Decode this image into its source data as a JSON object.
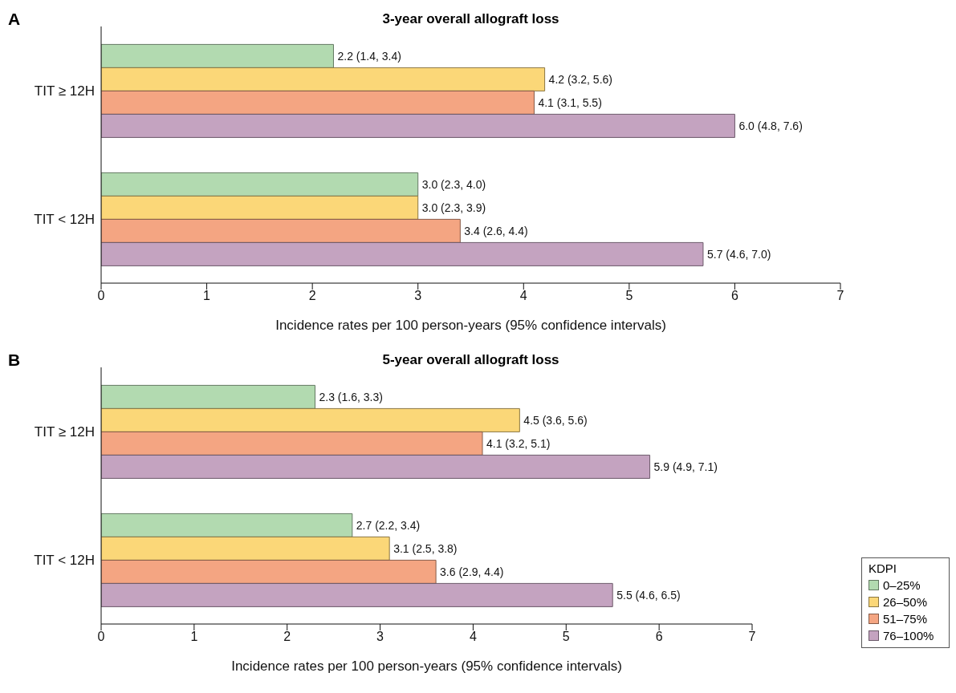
{
  "chart_data": [
    {
      "type": "bar",
      "orientation": "horizontal",
      "title": "3-year overall allograft loss",
      "xlabel": "Incidence rates per 100 person-years (95% confidence intervals)",
      "annotations": [
        "A"
      ],
      "categories": [
        "TIT ≥ 12H",
        "TIT < 12H"
      ],
      "xlim": [
        0,
        7
      ],
      "xticks": [
        0,
        1,
        2,
        3,
        4,
        5,
        6,
        7
      ],
      "grid": false,
      "legend": false,
      "series": [
        {
          "color": "#b2dab0",
          "values": [
            2.2,
            3.0
          ],
          "value_labels": [
            "2.2 (1.4, 3.4)",
            "3.0 (2.3, 4.0)"
          ]
        },
        {
          "color": "#fbd778",
          "values": [
            4.2,
            3.0
          ],
          "value_labels": [
            "4.2 (3.2, 5.6)",
            "3.0 (2.3, 3.9)"
          ]
        },
        {
          "color": "#f4a582",
          "values": [
            4.1,
            3.4
          ],
          "value_labels": [
            "4.1 (3.1, 5.5)",
            "3.4 (2.6, 4.4)"
          ]
        },
        {
          "color": "#c4a3c0",
          "values": [
            6.0,
            5.7
          ],
          "value_labels": [
            "6.0 (4.8, 7.6)",
            "5.7 (4.6, 7.0)"
          ]
        }
      ]
    },
    {
      "type": "bar",
      "orientation": "horizontal",
      "title": "5-year overall allograft loss",
      "xlabel": "Incidence rates per 100 person-years (95% confidence intervals)",
      "annotations": [
        "B"
      ],
      "categories": [
        "TIT ≥ 12H",
        "TIT < 12H"
      ],
      "xlim": [
        0,
        7
      ],
      "xticks": [
        0,
        1,
        2,
        3,
        4,
        5,
        6,
        7
      ],
      "grid": false,
      "legend": "bottom right",
      "legend_title": "KDPI",
      "series": [
        {
          "name": "0–25%",
          "color": "#b2dab0",
          "values": [
            2.3,
            2.7
          ],
          "value_labels": [
            "2.3 (1.6, 3.3)",
            "2.7 (2.2, 3.4)"
          ]
        },
        {
          "name": "26–50%",
          "color": "#fbd778",
          "values": [
            4.5,
            3.1
          ],
          "value_labels": [
            "4.5 (3.6, 5.6)",
            "3.1 (2.5, 3.8)"
          ]
        },
        {
          "name": "51–75%",
          "color": "#f4a582",
          "values": [
            4.1,
            3.6
          ],
          "value_labels": [
            "4.1 (3.2, 5.1)",
            "3.6 (2.9, 4.4)"
          ]
        },
        {
          "name": "76–100%",
          "color": "#c4a3c0",
          "values": [
            5.9,
            5.5
          ],
          "value_labels": [
            "5.9 (4.9, 7.1)",
            "5.5 (4.6, 6.5)"
          ]
        }
      ]
    }
  ]
}
